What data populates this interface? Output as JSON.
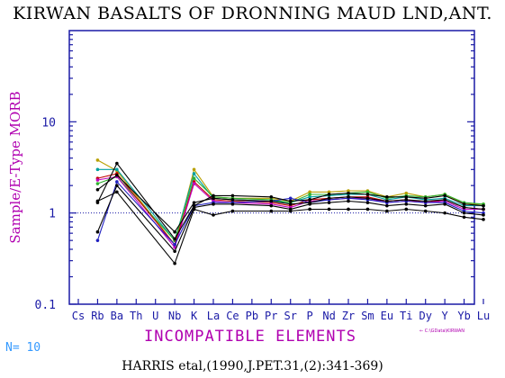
{
  "title": "KIRWAN BASALTS OF DRONNING MAUD LND,ANT.",
  "footer": {
    "n_label": "N= 10",
    "citation": "HARRIS etal,(1990,J.PET.31,(2):341-369)",
    "source_note": "← C:\\GData\\KIRWAN"
  },
  "colors": {
    "axis": "#1a1aa6",
    "xlabel": "#b000b0",
    "ylabel": "#b000b0",
    "reference_line": "#1a1aa6"
  },
  "chart_data": {
    "type": "line",
    "title": "KIRWAN BASALTS OF DRONNING MAUD LND,ANT.",
    "xlabel": "INCOMPATIBLE ELEMENTS",
    "ylabel": "Sample/E-Type MORB",
    "yscale": "log",
    "ylim": [
      0.1,
      100
    ],
    "y_ticks": [
      {
        "value": 0.1,
        "label": "0.1"
      },
      {
        "value": 1,
        "label": "1"
      },
      {
        "value": 10,
        "label": "10"
      }
    ],
    "reference_line": 1,
    "categories": [
      "Cs",
      "Rb",
      "Ba",
      "Th",
      "U",
      "Nb",
      "K",
      "La",
      "Ce",
      "Pb",
      "Pr",
      "Sr",
      "P",
      "Nd",
      "Zr",
      "Sm",
      "Eu",
      "Ti",
      "Dy",
      "Y",
      "Yb",
      "Lu"
    ],
    "series": [
      {
        "color": "#b8a000",
        "values": [
          null,
          3.8,
          2.9,
          null,
          null,
          0.45,
          3.0,
          1.5,
          1.45,
          null,
          1.45,
          1.35,
          1.7,
          1.7,
          1.75,
          1.75,
          1.5,
          1.65,
          1.5,
          1.6,
          1.25,
          1.25
        ]
      },
      {
        "color": "#00a0a0",
        "values": [
          null,
          3.0,
          3.0,
          null,
          null,
          0.5,
          2.7,
          1.45,
          1.4,
          null,
          1.35,
          1.3,
          1.5,
          1.55,
          1.6,
          1.6,
          1.4,
          1.5,
          1.4,
          1.45,
          1.2,
          1.2
        ]
      },
      {
        "color": "#30b030",
        "values": [
          null,
          2.1,
          2.5,
          null,
          null,
          0.5,
          2.4,
          1.5,
          1.45,
          null,
          1.4,
          1.3,
          1.6,
          1.6,
          1.65,
          1.7,
          1.45,
          1.55,
          1.5,
          1.6,
          1.3,
          1.25
        ]
      },
      {
        "color": "#c00000",
        "values": [
          null,
          2.4,
          2.7,
          null,
          null,
          0.45,
          2.2,
          1.4,
          1.35,
          null,
          1.3,
          1.2,
          1.4,
          1.45,
          1.5,
          1.5,
          1.35,
          1.4,
          1.3,
          1.4,
          1.15,
          1.1
        ]
      },
      {
        "color": "#c000c0",
        "values": [
          null,
          2.3,
          2.5,
          null,
          null,
          0.42,
          2.1,
          1.35,
          1.3,
          null,
          1.25,
          1.15,
          1.35,
          1.4,
          1.45,
          1.45,
          1.3,
          1.35,
          1.3,
          1.35,
          1.1,
          1.1
        ]
      },
      {
        "color": "#2020c0",
        "values": [
          null,
          0.5,
          2.2,
          null,
          null,
          0.45,
          1.2,
          1.3,
          1.3,
          null,
          1.35,
          1.45,
          1.3,
          1.4,
          1.45,
          1.4,
          1.3,
          1.35,
          1.3,
          1.3,
          1.05,
          1.0
        ]
      },
      {
        "color": "#000000",
        "values": [
          null,
          1.3,
          3.5,
          null,
          null,
          0.52,
          1.2,
          1.55,
          1.55,
          null,
          1.5,
          1.35,
          1.4,
          1.6,
          1.65,
          1.6,
          1.5,
          1.5,
          1.45,
          1.55,
          1.25,
          1.2
        ]
      },
      {
        "color": "#000000",
        "values": [
          null,
          1.8,
          2.6,
          null,
          null,
          0.62,
          1.3,
          1.45,
          1.4,
          null,
          1.35,
          1.25,
          1.3,
          1.45,
          1.5,
          1.45,
          1.35,
          1.4,
          1.35,
          1.4,
          1.15,
          1.1
        ]
      },
      {
        "color": "#000000",
        "values": [
          null,
          0.62,
          2.0,
          null,
          null,
          0.38,
          1.15,
          1.25,
          1.25,
          null,
          1.2,
          1.1,
          1.25,
          1.3,
          1.35,
          1.3,
          1.2,
          1.25,
          1.2,
          1.25,
          1.0,
          0.95
        ]
      },
      {
        "color": "#000000",
        "values": [
          null,
          1.35,
          1.7,
          null,
          null,
          0.28,
          1.1,
          0.95,
          1.05,
          null,
          1.05,
          1.05,
          1.1,
          1.1,
          1.1,
          1.1,
          1.05,
          1.1,
          1.05,
          1.0,
          0.9,
          0.85
        ]
      }
    ]
  }
}
